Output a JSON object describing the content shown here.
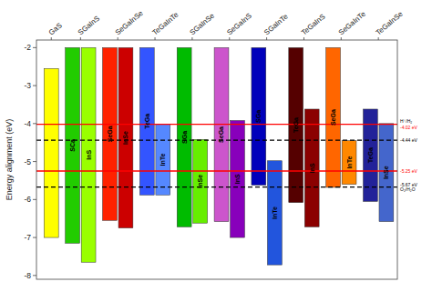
{
  "chart_data": {
    "type": "bar",
    "categories": [
      "GaS",
      "SGaInS",
      "SeGaInSe",
      "TeGaInTe",
      "SGaInSe",
      "SeGaInS",
      "SGaInTe",
      "TeGaInS",
      "SeGaInTe",
      "TeGaInSe"
    ],
    "bars": [
      [
        {
          "color": "#ffff00",
          "high": -2.55,
          "low": -7.0
        }
      ],
      [
        {
          "label": "SCa",
          "color": "#22cc00",
          "high": -2.0,
          "low": -7.15
        },
        {
          "label": "InS",
          "color": "#99ff00",
          "high": -2.0,
          "low": -7.65
        }
      ],
      [
        {
          "label": "SeGa",
          "color": "#ff2200",
          "high": -2.0,
          "low": -6.55
        },
        {
          "label": "InSe",
          "color": "#cc0000",
          "high": -2.0,
          "low": -6.75
        }
      ],
      [
        {
          "label": "TeGa",
          "color": "#3355ff",
          "high": -2.0,
          "low": -5.88
        },
        {
          "label": "InTe",
          "color": "#5588ff",
          "high": -4.02,
          "low": -5.88
        }
      ],
      [
        {
          "label": "SGa",
          "color": "#00bb00",
          "high": -2.0,
          "low": -6.72
        },
        {
          "label": "InSe",
          "color": "#66ee00",
          "high": -4.42,
          "low": -6.62
        }
      ],
      [
        {
          "label": "SeGa",
          "color": "#cc55cc",
          "high": -2.0,
          "low": -6.58
        },
        {
          "label": "InS",
          "color": "#8800bb",
          "high": -3.92,
          "low": -7.0
        }
      ],
      [
        {
          "label": "SGa",
          "color": "#0000bb",
          "high": -2.0,
          "low": -5.62
        },
        {
          "label": "InTe",
          "color": "#2255dd",
          "high": -4.98,
          "low": -7.72
        }
      ],
      [
        {
          "label": "TeGa",
          "color": "#550000",
          "high": -2.0,
          "low": -6.08
        },
        {
          "label": "InS",
          "color": "#8b0000",
          "high": -3.62,
          "low": -6.72
        }
      ],
      [
        {
          "label": "SeGa",
          "color": "#ff6600",
          "high": -2.0,
          "low": -5.68
        },
        {
          "label": "InTe",
          "color": "#ff8800",
          "high": -4.45,
          "low": -5.6
        }
      ],
      [
        {
          "label": "TeGa",
          "color": "#222299",
          "high": -3.62,
          "low": -6.05
        },
        {
          "label": "InSe",
          "color": "#4466cc",
          "high": -4.0,
          "low": -6.58
        }
      ]
    ],
    "hlines": [
      {
        "y": -4.02,
        "color": "#ff0000",
        "line_style": "solid"
      },
      {
        "y": -4.44,
        "color": "#000000",
        "line_style": "dashed"
      },
      {
        "y": -5.25,
        "color": "#ff0000",
        "line_style": "solid"
      },
      {
        "y": -5.67,
        "color": "#000000",
        "line_style": "dashed"
      }
    ],
    "annotations": [
      {
        "y": -3.93,
        "text": "H⁺/H₂",
        "color": "#000000"
      },
      {
        "y": -4.09,
        "text": "-4.02 eV",
        "color": "#ff0000"
      },
      {
        "y": -4.44,
        "text": "-4.44 eV",
        "color": "#000000"
      },
      {
        "y": -5.25,
        "text": "-5.25 eV",
        "color": "#ff0000"
      },
      {
        "y": -5.6,
        "text": "-5.67 eV",
        "color": "#000000"
      },
      {
        "y": -5.74,
        "text": "O₂/H₂O",
        "color": "#000000"
      }
    ],
    "ylabel": "Energy alignment (eV)",
    "ylim": [
      -8.1,
      -1.8
    ],
    "yticks": [
      -2,
      -3,
      -4,
      -5,
      -6,
      -7,
      -8
    ]
  }
}
